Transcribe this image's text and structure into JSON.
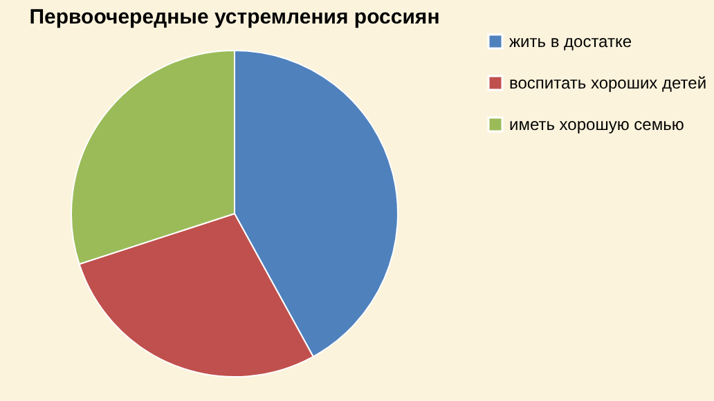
{
  "chart_data": {
    "type": "pie",
    "title": "Первоочередные устремления россиян",
    "categories": [
      "жить в достатке",
      "воспитать хороших детей",
      "иметь хорошую семью"
    ],
    "values": [
      42,
      28,
      30
    ],
    "colors": [
      "#4f81bd",
      "#c0504d",
      "#9bbb59"
    ],
    "legend": "right"
  }
}
